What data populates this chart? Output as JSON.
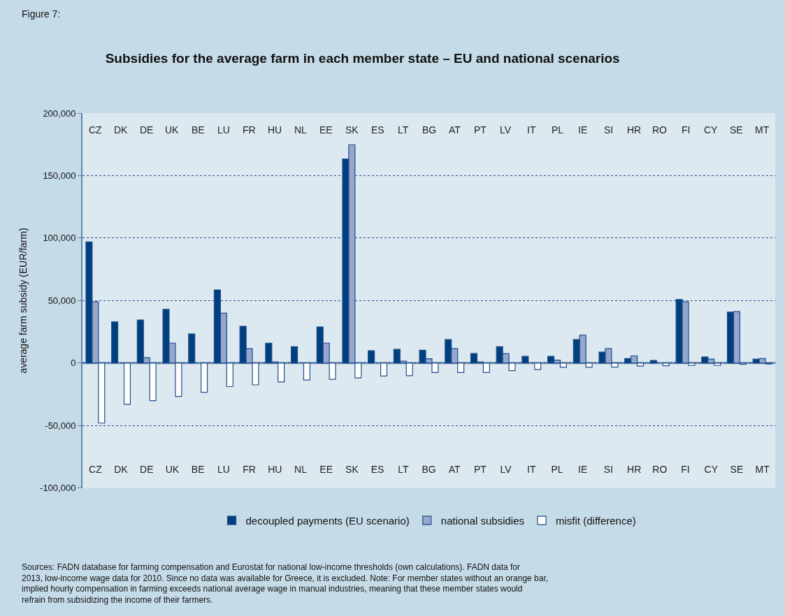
{
  "chart_data": {
    "type": "bar",
    "title": "Subsidies for the average farm in each member state – EU and national scenarios",
    "ylabel": "average farm subsidy (EUR/farm)",
    "categories": [
      "CZ",
      "DK",
      "DE",
      "UK",
      "BE",
      "LU",
      "FR",
      "HU",
      "NL",
      "EE",
      "SK",
      "ES",
      "LT",
      "BG",
      "AT",
      "PT",
      "LV",
      "IT",
      "PL",
      "IE",
      "SI",
      "HR",
      "RO",
      "FI",
      "CY",
      "SE",
      "MT"
    ],
    "series": [
      {
        "name": "decoupled payments (EU scenario)",
        "color": "#003f7f",
        "values": [
          97000,
          33000,
          34500,
          43000,
          23300,
          58600,
          29500,
          16000,
          13200,
          28900,
          163300,
          9900,
          11000,
          10400,
          18800,
          7700,
          13200,
          5400,
          5400,
          18900,
          8800,
          3700,
          2100,
          50900,
          4900,
          40800,
          3200
        ]
      },
      {
        "name": "national subsidies",
        "color": "#96a6cc",
        "values": [
          49000,
          null,
          4300,
          16000,
          null,
          40000,
          11600,
          1000,
          null,
          16000,
          174700,
          null,
          1500,
          3500,
          11600,
          1000,
          7500,
          null,
          2400,
          22300,
          11600,
          5800,
          null,
          49000,
          3200,
          41200,
          3600
        ]
      },
      {
        "name": "misfit (difference)",
        "color": "#ffffff",
        "values": [
          -48000,
          -33000,
          -30000,
          -26700,
          -23300,
          -18800,
          -17400,
          -15100,
          -13600,
          -13000,
          -11900,
          -10300,
          -10100,
          -7500,
          -7500,
          -7500,
          -6000,
          -5200,
          -3400,
          -3400,
          -3200,
          -2400,
          -2100,
          -1900,
          -1900,
          -1000,
          -700
        ]
      }
    ],
    "ylim": [
      -100000,
      200000
    ],
    "yticks": [
      {
        "value": -100000,
        "label": "-100,000"
      },
      {
        "value": -50000,
        "label": "-50,000"
      },
      0,
      {
        "value": 50000,
        "label": "50,000"
      },
      {
        "value": 100000,
        "label": "100,000"
      },
      {
        "value": 150000,
        "label": "150,000"
      },
      {
        "value": 200000,
        "label": "200,000"
      }
    ],
    "ref_lines": [
      {
        "axis": "y",
        "value": 0,
        "color": "#6f8fae"
      }
    ],
    "grid": "y",
    "legend": "bottom",
    "annotations": [
      "Figure 7:",
      "Sources: FADN database for farming compensation and Eurostat for national low-income thresholds (own calculations). FADN data for\n2013, low-income wage data for 2010. Since no data was available for Greece, it is excluded. Note: For member states without an orange bar,\nimplied hourly compensation in farming exceeds national average wage in manual industries, meaning that these member states would\nrefrain from subsidizing the income of their farmers."
    ]
  }
}
